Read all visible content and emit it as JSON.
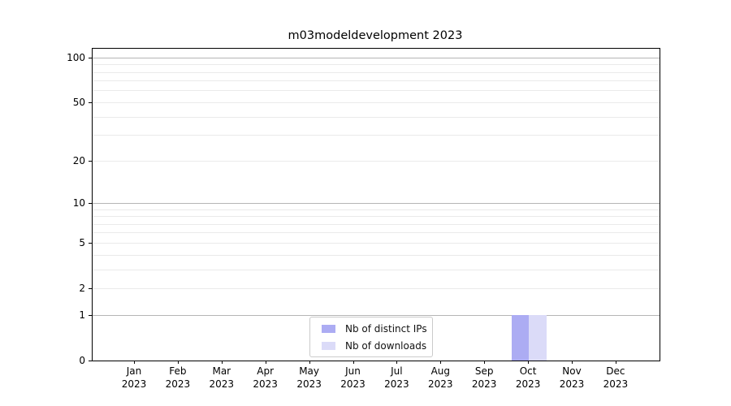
{
  "chart_data": {
    "type": "bar",
    "title": "m03modeldevelopment 2023",
    "categories": [
      "Jan\n2023",
      "Feb\n2023",
      "Mar\n2023",
      "Apr\n2023",
      "May\n2023",
      "Jun\n2023",
      "Jul\n2023",
      "Aug\n2023",
      "Sep\n2023",
      "Oct\n2023",
      "Nov\n2023",
      "Dec\n2023"
    ],
    "series": [
      {
        "name": "Nb of distinct IPs",
        "color": "#acacf3",
        "values": [
          0,
          0,
          0,
          0,
          0,
          0,
          0,
          0,
          0,
          1,
          0,
          0
        ]
      },
      {
        "name": "Nb of downloads",
        "color": "#dbdbf8",
        "values": [
          0,
          0,
          0,
          0,
          0,
          0,
          0,
          0,
          0,
          1,
          0,
          0
        ]
      }
    ],
    "y_axis": {
      "scale": "log1p",
      "ticks": [
        0,
        1,
        2,
        5,
        10,
        20,
        50,
        100
      ],
      "major_gridlines": [
        1,
        10,
        100
      ],
      "minor_gridlines": [
        2,
        3,
        4,
        5,
        6,
        7,
        8,
        9,
        20,
        30,
        40,
        50,
        60,
        70,
        80,
        90
      ],
      "max": 115
    },
    "xlabel": "",
    "ylabel": "",
    "grid": true,
    "legend_position": "lower center"
  }
}
